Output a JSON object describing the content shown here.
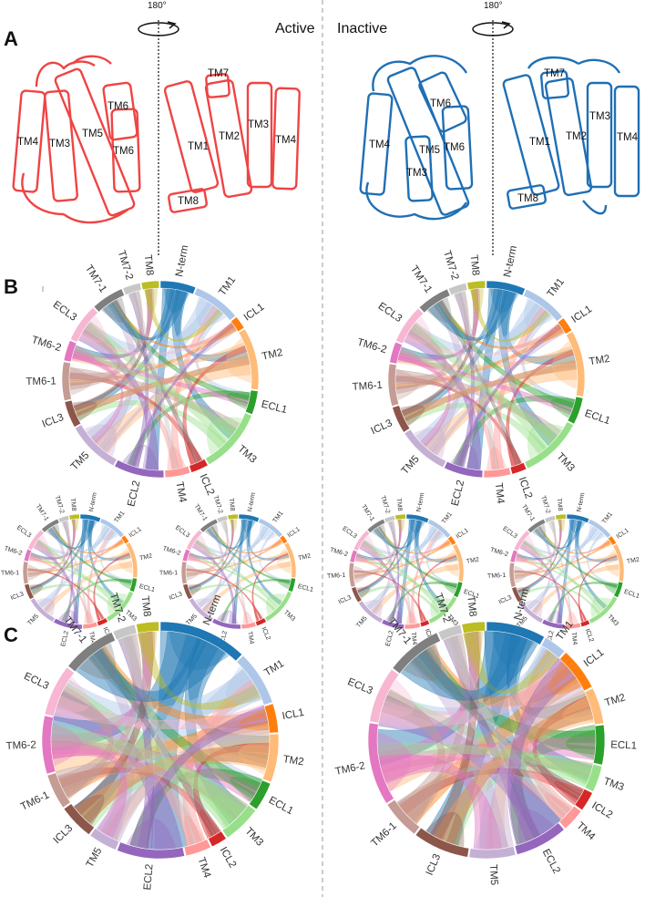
{
  "figure": {
    "panels": {
      "a": "A",
      "b": "B",
      "c": "C"
    },
    "states": {
      "active": "Active",
      "inactive": "Inactive"
    },
    "rotation": "180°",
    "colors": {
      "active": "#ef4444",
      "inactive": "#1f6fb5"
    }
  },
  "segments": [
    {
      "key": "nterm",
      "label": "N-term",
      "color": "#1f77b4"
    },
    {
      "key": "tm1",
      "label": "TM1",
      "color": "#aec7e8"
    },
    {
      "key": "icl1",
      "label": "ICL1",
      "color": "#ff7f0e"
    },
    {
      "key": "tm2",
      "label": "TM2",
      "color": "#ffbb78"
    },
    {
      "key": "ecl1",
      "label": "ECL1",
      "color": "#2ca02c"
    },
    {
      "key": "tm3",
      "label": "TM3",
      "color": "#98df8a"
    },
    {
      "key": "icl2",
      "label": "ICL2",
      "color": "#d62728"
    },
    {
      "key": "tm4",
      "label": "TM4",
      "color": "#ff9896"
    },
    {
      "key": "ecl2",
      "label": "ECL2",
      "color": "#9467bd"
    },
    {
      "key": "tm5",
      "label": "TM5",
      "color": "#c5b0d5"
    },
    {
      "key": "icl3",
      "label": "ICL3",
      "color": "#8c564b"
    },
    {
      "key": "tm61",
      "label": "TM6-1",
      "color": "#c49c94"
    },
    {
      "key": "tm62",
      "label": "TM6-2",
      "color": "#e377c2"
    },
    {
      "key": "ecl3",
      "label": "ECL3",
      "color": "#f7b6d2"
    },
    {
      "key": "tm71",
      "label": "TM7-1",
      "color": "#7f7f7f"
    },
    {
      "key": "tm72",
      "label": "TM7-2",
      "color": "#c7c7c7"
    },
    {
      "key": "tm8",
      "label": "TM8",
      "color": "#bcbd22"
    }
  ],
  "diagrams": {
    "b_active_main": {
      "weights": [
        2.4,
        3.2,
        0.9,
        4.2,
        1.6,
        4.4,
        1.2,
        1.7,
        3.4,
        3.6,
        1.8,
        2.6,
        1.4,
        2.6,
        2.2,
        1.2,
        1.2
      ]
    },
    "b_active_sub1": {
      "weights": [
        2.4,
        3.2,
        0.9,
        4.2,
        1.6,
        4.4,
        1.2,
        1.7,
        3.4,
        3.6,
        1.8,
        2.6,
        1.4,
        2.6,
        2.2,
        1.2,
        1.2
      ]
    },
    "b_active_sub2": {
      "weights": [
        2.4,
        3.2,
        0.9,
        4.2,
        1.6,
        4.4,
        1.2,
        1.7,
        3.4,
        3.6,
        1.8,
        2.6,
        1.4,
        2.6,
        2.2,
        1.2,
        1.2
      ]
    },
    "b_inactive_main": {
      "weights": [
        2.6,
        3.0,
        1.0,
        4.4,
        1.8,
        4.2,
        1.0,
        1.8,
        2.6,
        3.4,
        1.8,
        2.8,
        1.4,
        2.6,
        2.2,
        1.2,
        1.2
      ]
    },
    "b_inactive_sub1": {
      "weights": [
        2.6,
        3.0,
        1.0,
        4.4,
        1.8,
        4.2,
        1.0,
        1.8,
        2.6,
        3.4,
        1.8,
        2.8,
        1.4,
        2.6,
        2.2,
        1.2,
        1.2
      ]
    },
    "b_inactive_sub2": {
      "weights": [
        2.6,
        3.0,
        1.0,
        4.4,
        1.8,
        4.2,
        1.0,
        1.8,
        2.6,
        3.4,
        1.8,
        2.8,
        1.4,
        2.6,
        2.2,
        1.2,
        1.2
      ]
    },
    "c_active": {
      "weights": [
        5.5,
        3.4,
        1.8,
        3.0,
        1.8,
        2.4,
        1.0,
        1.6,
        4.2,
        1.8,
        2.2,
        2.2,
        3.6,
        3.2,
        3.4,
        1.4,
        1.4
      ]
    },
    "c_inactive": {
      "weights": [
        3.6,
        1.4,
        2.6,
        2.2,
        2.4,
        1.6,
        1.2,
        1.4,
        3.2,
        2.8,
        3.4,
        2.4,
        5.0,
        3.4,
        3.4,
        1.4,
        1.4
      ]
    }
  },
  "helices": {
    "active_left": [
      "TM4",
      "TM3",
      "TM5",
      "TM6",
      "TM6"
    ],
    "active_right": [
      "TM7",
      "TM1",
      "TM2",
      "TM3",
      "TM4",
      "TM8"
    ],
    "inactive_left": [
      "TM6",
      "TM4",
      "TM5",
      "TM6",
      "TM3"
    ],
    "inactive_right": [
      "TM7",
      "TM1",
      "TM2",
      "TM3",
      "TM4",
      "TM8"
    ]
  }
}
